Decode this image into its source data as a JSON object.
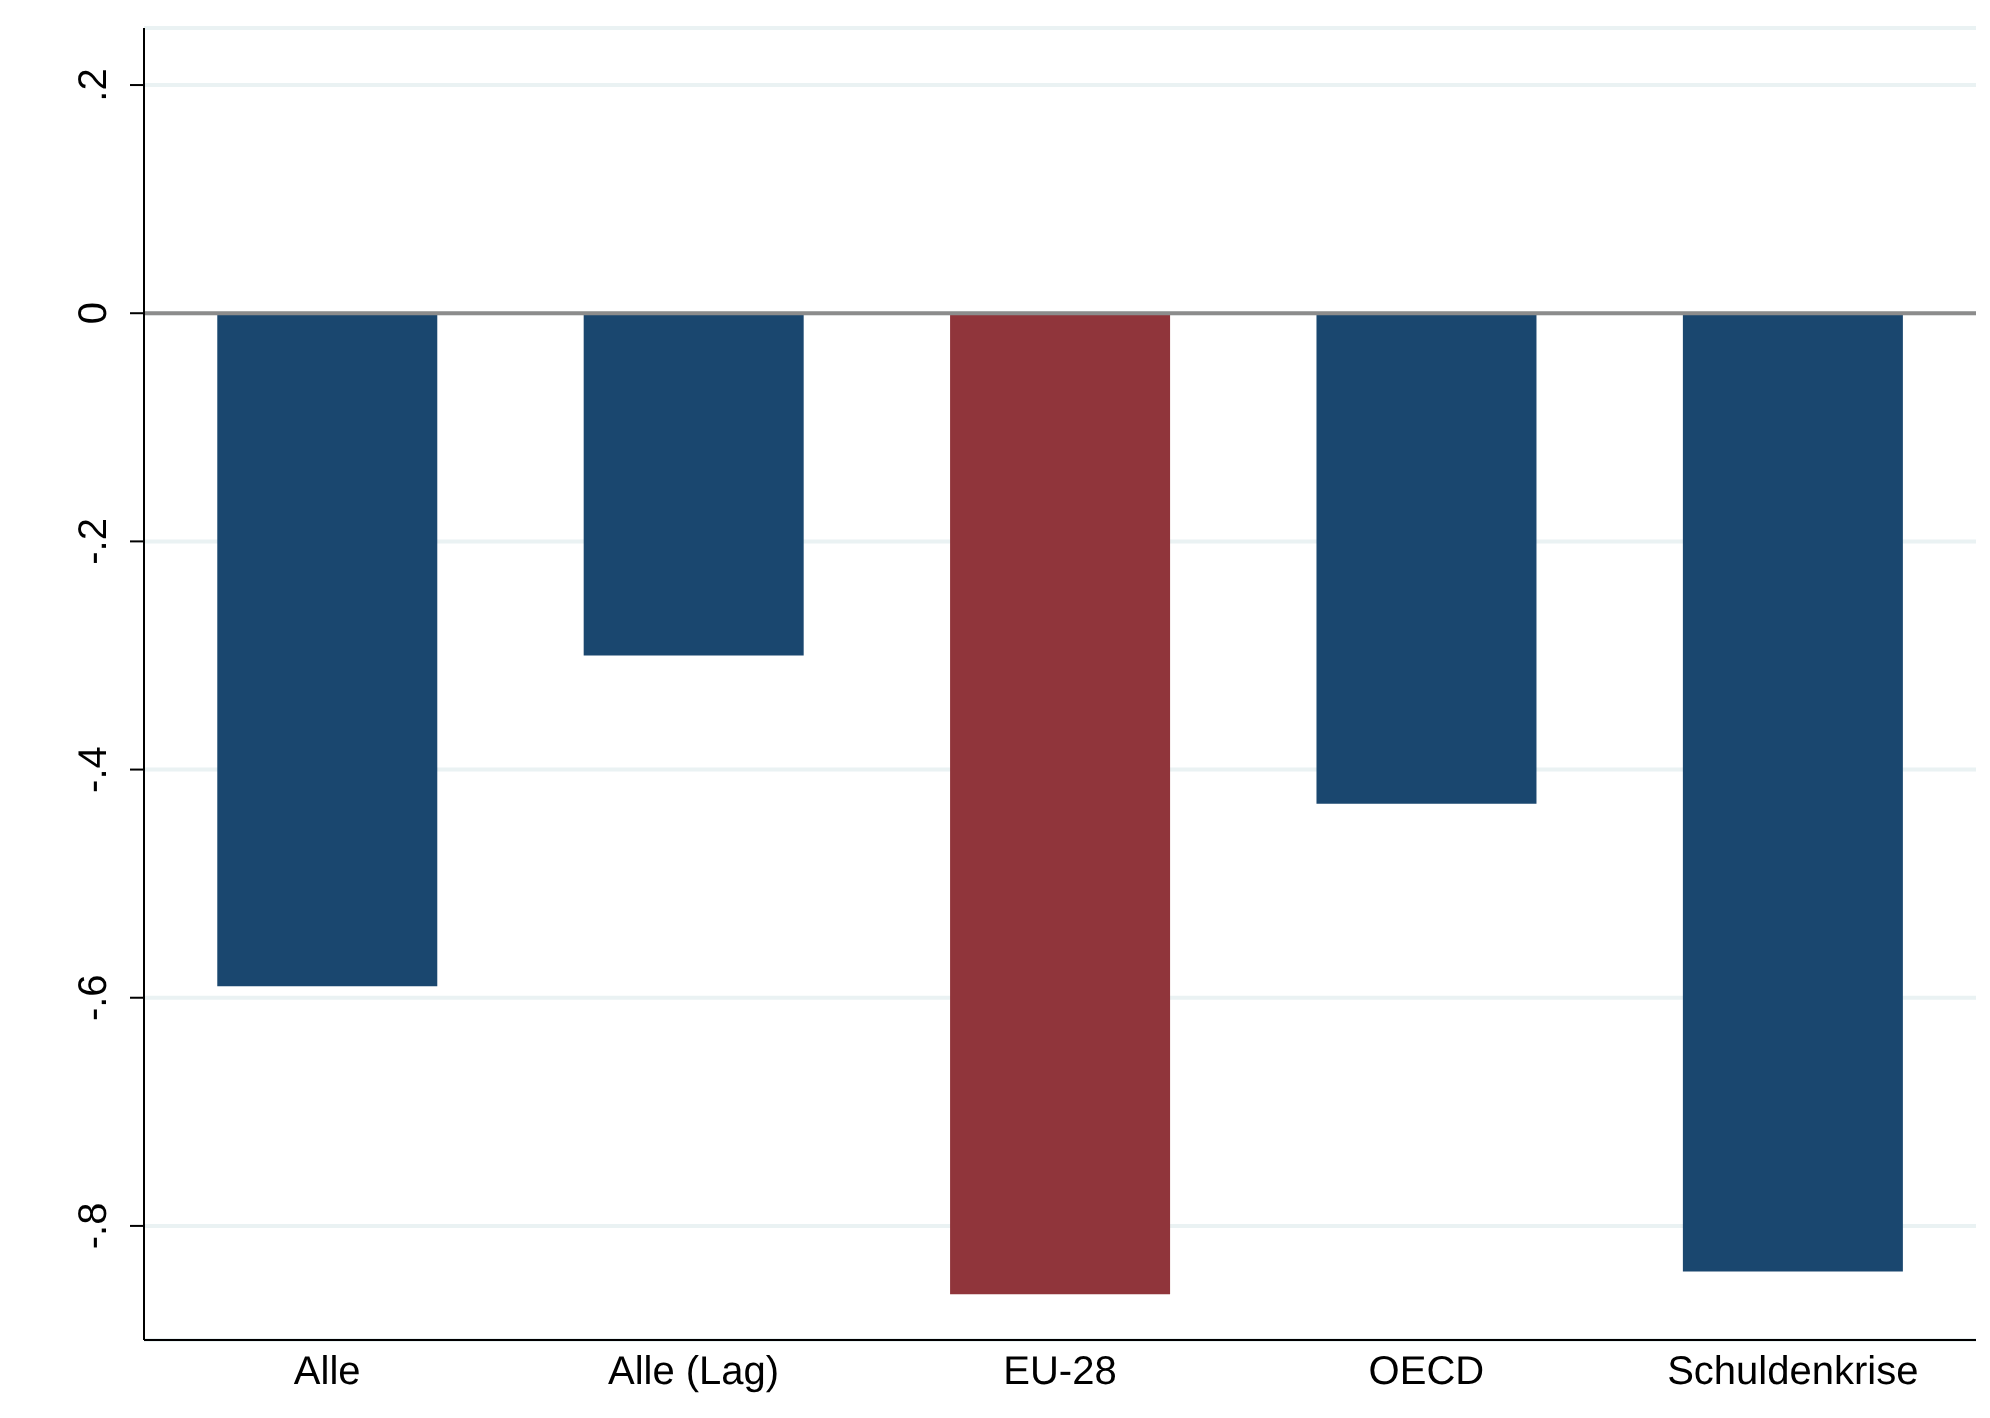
{
  "chart_data": {
    "type": "bar",
    "categories": [
      "Alle",
      "Alle (Lag)",
      "EU-28",
      "OECD",
      "Schuldenkrise"
    ],
    "values": [
      -0.59,
      -0.3,
      -0.86,
      -0.43,
      -0.84
    ],
    "colors": [
      "#1a476f",
      "#1a476f",
      "#90353b",
      "#1a476f",
      "#1a476f"
    ],
    "ylim": [
      -0.9,
      0.25
    ],
    "yticks": [
      {
        "value": -0.8,
        "label": "-.8"
      },
      {
        "value": -0.6,
        "label": "-.6"
      },
      {
        "value": -0.4,
        "label": "-.4"
      },
      {
        "value": -0.2,
        "label": "-.2"
      },
      0,
      {
        "value": 0.2,
        "label": ".2"
      }
    ],
    "ref_lines": [
      {
        "axis": "y",
        "value": 0,
        "color": "#8c8c8c"
      }
    ],
    "grid": "y"
  }
}
